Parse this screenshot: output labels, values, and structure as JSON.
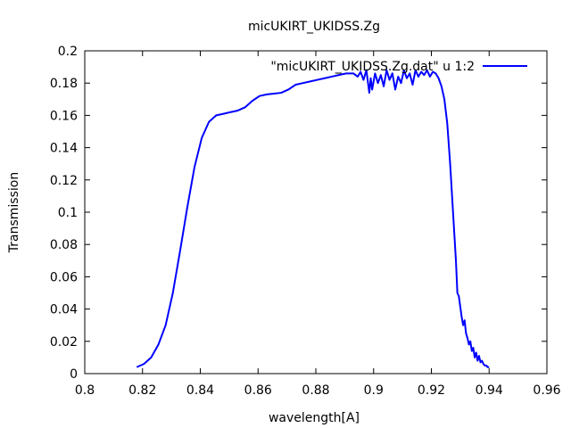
{
  "chart_data": {
    "type": "line",
    "title": "micUKIRT_UKIDSS.Zg",
    "xlabel": "wavelength[A]",
    "ylabel": "Transmission",
    "xlim": [
      0.8,
      0.96
    ],
    "ylim": [
      0,
      0.2
    ],
    "xticks": [
      "0.8",
      "0.82",
      "0.84",
      "0.86",
      "0.88",
      "0.9",
      "0.92",
      "0.94",
      "0.96"
    ],
    "yticks": [
      "0",
      "0.02",
      "0.04",
      "0.06",
      "0.08",
      "0.1",
      "0.12",
      "0.14",
      "0.16",
      "0.18",
      "0.2"
    ],
    "grid": false,
    "legend_position": "top-right",
    "series": [
      {
        "name": "\"micUKIRT_UKIDSS.Zg.dat\" u 1:2",
        "color": "#0000ff",
        "x": [
          0.818,
          0.8205,
          0.823,
          0.8255,
          0.828,
          0.8305,
          0.833,
          0.8355,
          0.838,
          0.8405,
          0.843,
          0.8455,
          0.848,
          0.8505,
          0.853,
          0.8555,
          0.858,
          0.8605,
          0.863,
          0.8655,
          0.868,
          0.8705,
          0.873,
          0.8755,
          0.878,
          0.8805,
          0.883,
          0.8855,
          0.888,
          0.8905,
          0.893,
          0.8945,
          0.8955,
          0.8965,
          0.8975,
          0.8985,
          0.899,
          0.8995,
          0.9005,
          0.9015,
          0.9025,
          0.9035,
          0.9045,
          0.9055,
          0.9065,
          0.9075,
          0.9085,
          0.9095,
          0.9105,
          0.9115,
          0.9125,
          0.9135,
          0.9145,
          0.9155,
          0.9165,
          0.9175,
          0.9185,
          0.9195,
          0.9205,
          0.9215,
          0.9225,
          0.9235,
          0.9245,
          0.9255,
          0.9265,
          0.9275,
          0.9285,
          0.929,
          0.9295,
          0.9305,
          0.931,
          0.9315,
          0.932,
          0.9325,
          0.933,
          0.9335,
          0.934,
          0.9345,
          0.935,
          0.9355,
          0.936,
          0.9365,
          0.937,
          0.9375,
          0.938,
          0.9385,
          0.939,
          0.9395,
          0.94
        ],
        "y": [
          0.004,
          0.006,
          0.01,
          0.018,
          0.03,
          0.05,
          0.076,
          0.103,
          0.128,
          0.146,
          0.156,
          0.16,
          0.161,
          0.162,
          0.163,
          0.165,
          0.169,
          0.172,
          0.173,
          0.1735,
          0.174,
          0.176,
          0.179,
          0.18,
          0.181,
          0.182,
          0.183,
          0.184,
          0.185,
          0.186,
          0.186,
          0.184,
          0.187,
          0.182,
          0.188,
          0.174,
          0.183,
          0.176,
          0.186,
          0.18,
          0.185,
          0.178,
          0.188,
          0.182,
          0.186,
          0.176,
          0.184,
          0.18,
          0.188,
          0.183,
          0.186,
          0.179,
          0.188,
          0.184,
          0.187,
          0.185,
          0.188,
          0.184,
          0.187,
          0.186,
          0.183,
          0.178,
          0.17,
          0.155,
          0.13,
          0.1,
          0.07,
          0.05,
          0.048,
          0.035,
          0.03,
          0.033,
          0.025,
          0.022,
          0.018,
          0.02,
          0.014,
          0.016,
          0.01,
          0.013,
          0.008,
          0.011,
          0.007,
          0.008,
          0.006,
          0.005,
          0.005,
          0.004,
          0.004
        ]
      }
    ]
  }
}
